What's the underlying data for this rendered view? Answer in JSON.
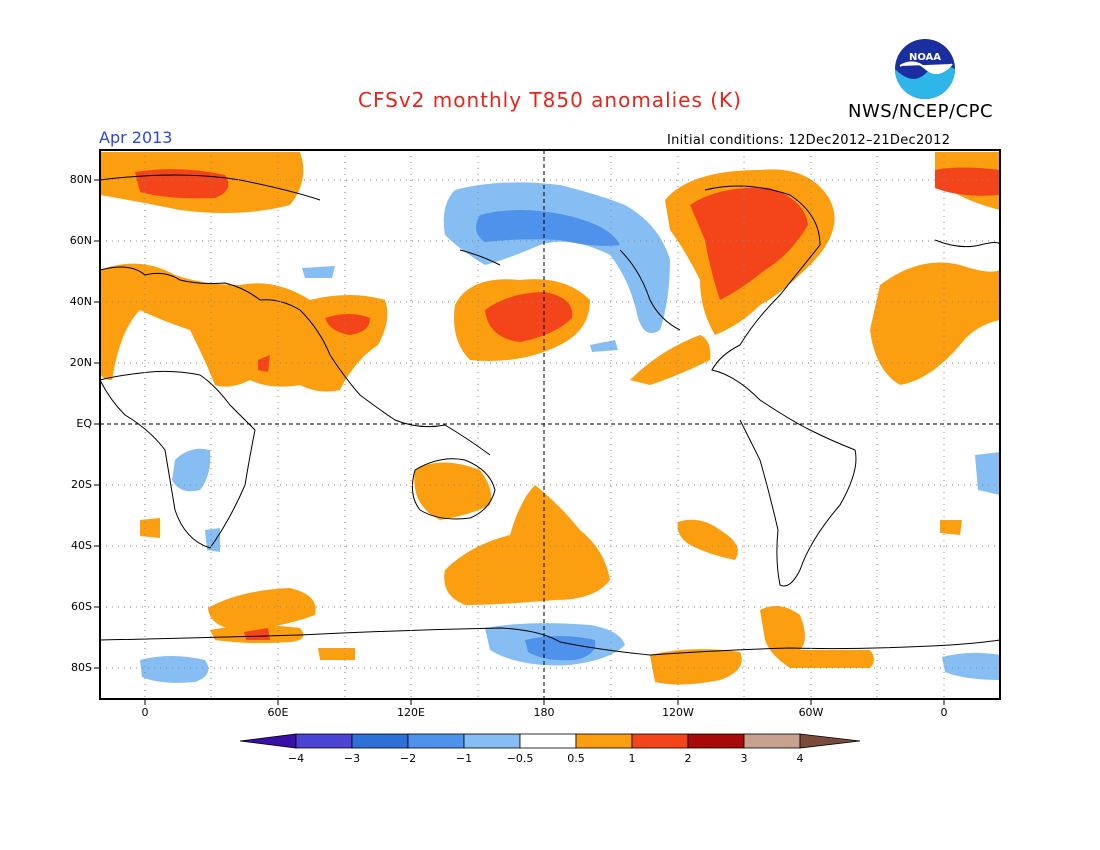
{
  "header": {
    "title": "CFSv2 monthly T850 anomalies (K)",
    "agency": "NWS/NCEP/CPC",
    "logo_text": "NOAA",
    "period": "Apr 2013",
    "initial_conditions": "Initial conditions: 12Dec2012–21Dec2012"
  },
  "axes": {
    "lat_labels": [
      "80N",
      "60N",
      "40N",
      "20N",
      "EQ",
      "20S",
      "40S",
      "60S",
      "80S"
    ],
    "lon_labels": [
      "0",
      "60E",
      "120E",
      "180",
      "120W",
      "60W",
      "0"
    ]
  },
  "colorbar": {
    "labels": [
      "−4",
      "−3",
      "−2",
      "−1",
      "−0.5",
      "0.5",
      "1",
      "2",
      "3",
      "4"
    ],
    "colors": [
      "#3a0fa8",
      "#4a43d4",
      "#2f6fd8",
      "#4f92ec",
      "#86bdf2",
      "#ffffff",
      "#fb9e0f",
      "#f4451a",
      "#a80a0a",
      "#c8a18f",
      "#7a4a3a"
    ]
  },
  "legend_colors": {
    "warm1": "#fb9e0f",
    "warm2": "#f4451a",
    "cool1": "#86bdf2",
    "cool2": "#4f92ec",
    "title_red": "#e8231a",
    "period_blue": "#2a45e0"
  }
}
